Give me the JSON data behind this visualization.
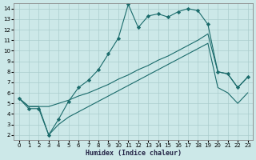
{
  "xlabel": "Humidex (Indice chaleur)",
  "xlim": [
    -0.5,
    23.5
  ],
  "ylim": [
    1.5,
    14.5
  ],
  "xticks": [
    0,
    1,
    2,
    3,
    4,
    5,
    6,
    7,
    8,
    9,
    10,
    11,
    12,
    13,
    14,
    15,
    16,
    17,
    18,
    19,
    20,
    21,
    22,
    23
  ],
  "yticks": [
    2,
    3,
    4,
    5,
    6,
    7,
    8,
    9,
    10,
    11,
    12,
    13,
    14
  ],
  "bg_color": "#cce8e8",
  "line_color": "#1a6b6b",
  "grid_color": "#aacccc",
  "series1_x": [
    0,
    1,
    2,
    3,
    4,
    5,
    6,
    7,
    8,
    9,
    10,
    11,
    12,
    13,
    14,
    15,
    16,
    17,
    18,
    19,
    20,
    21,
    22,
    23
  ],
  "series1_y": [
    5.5,
    4.5,
    4.5,
    2.0,
    3.5,
    5.2,
    6.5,
    7.2,
    8.2,
    9.7,
    11.2,
    14.4,
    12.2,
    13.3,
    13.5,
    13.2,
    13.7,
    14.0,
    13.8,
    12.5,
    8.0,
    7.8,
    6.5,
    7.5
  ],
  "series2_x": [
    0,
    1,
    2,
    3,
    4,
    5,
    6,
    7,
    8,
    9,
    10,
    11,
    12,
    13,
    14,
    15,
    16,
    17,
    18,
    19,
    20,
    21,
    22,
    23
  ],
  "series2_y": [
    5.5,
    4.7,
    4.7,
    4.7,
    5.0,
    5.3,
    5.7,
    6.0,
    6.4,
    6.8,
    7.3,
    7.7,
    8.2,
    8.6,
    9.1,
    9.5,
    10.0,
    10.5,
    11.0,
    11.6,
    8.0,
    7.8,
    6.5,
    7.5
  ],
  "series3_x": [
    0,
    1,
    2,
    3,
    4,
    5,
    6,
    7,
    8,
    9,
    10,
    11,
    12,
    13,
    14,
    15,
    16,
    17,
    18,
    19,
    20,
    21,
    22,
    23
  ],
  "series3_y": [
    5.5,
    4.7,
    4.7,
    2.0,
    3.0,
    3.7,
    4.2,
    4.7,
    5.2,
    5.7,
    6.2,
    6.7,
    7.2,
    7.7,
    8.2,
    8.7,
    9.2,
    9.7,
    10.2,
    10.7,
    6.5,
    6.0,
    5.0,
    6.0
  ]
}
